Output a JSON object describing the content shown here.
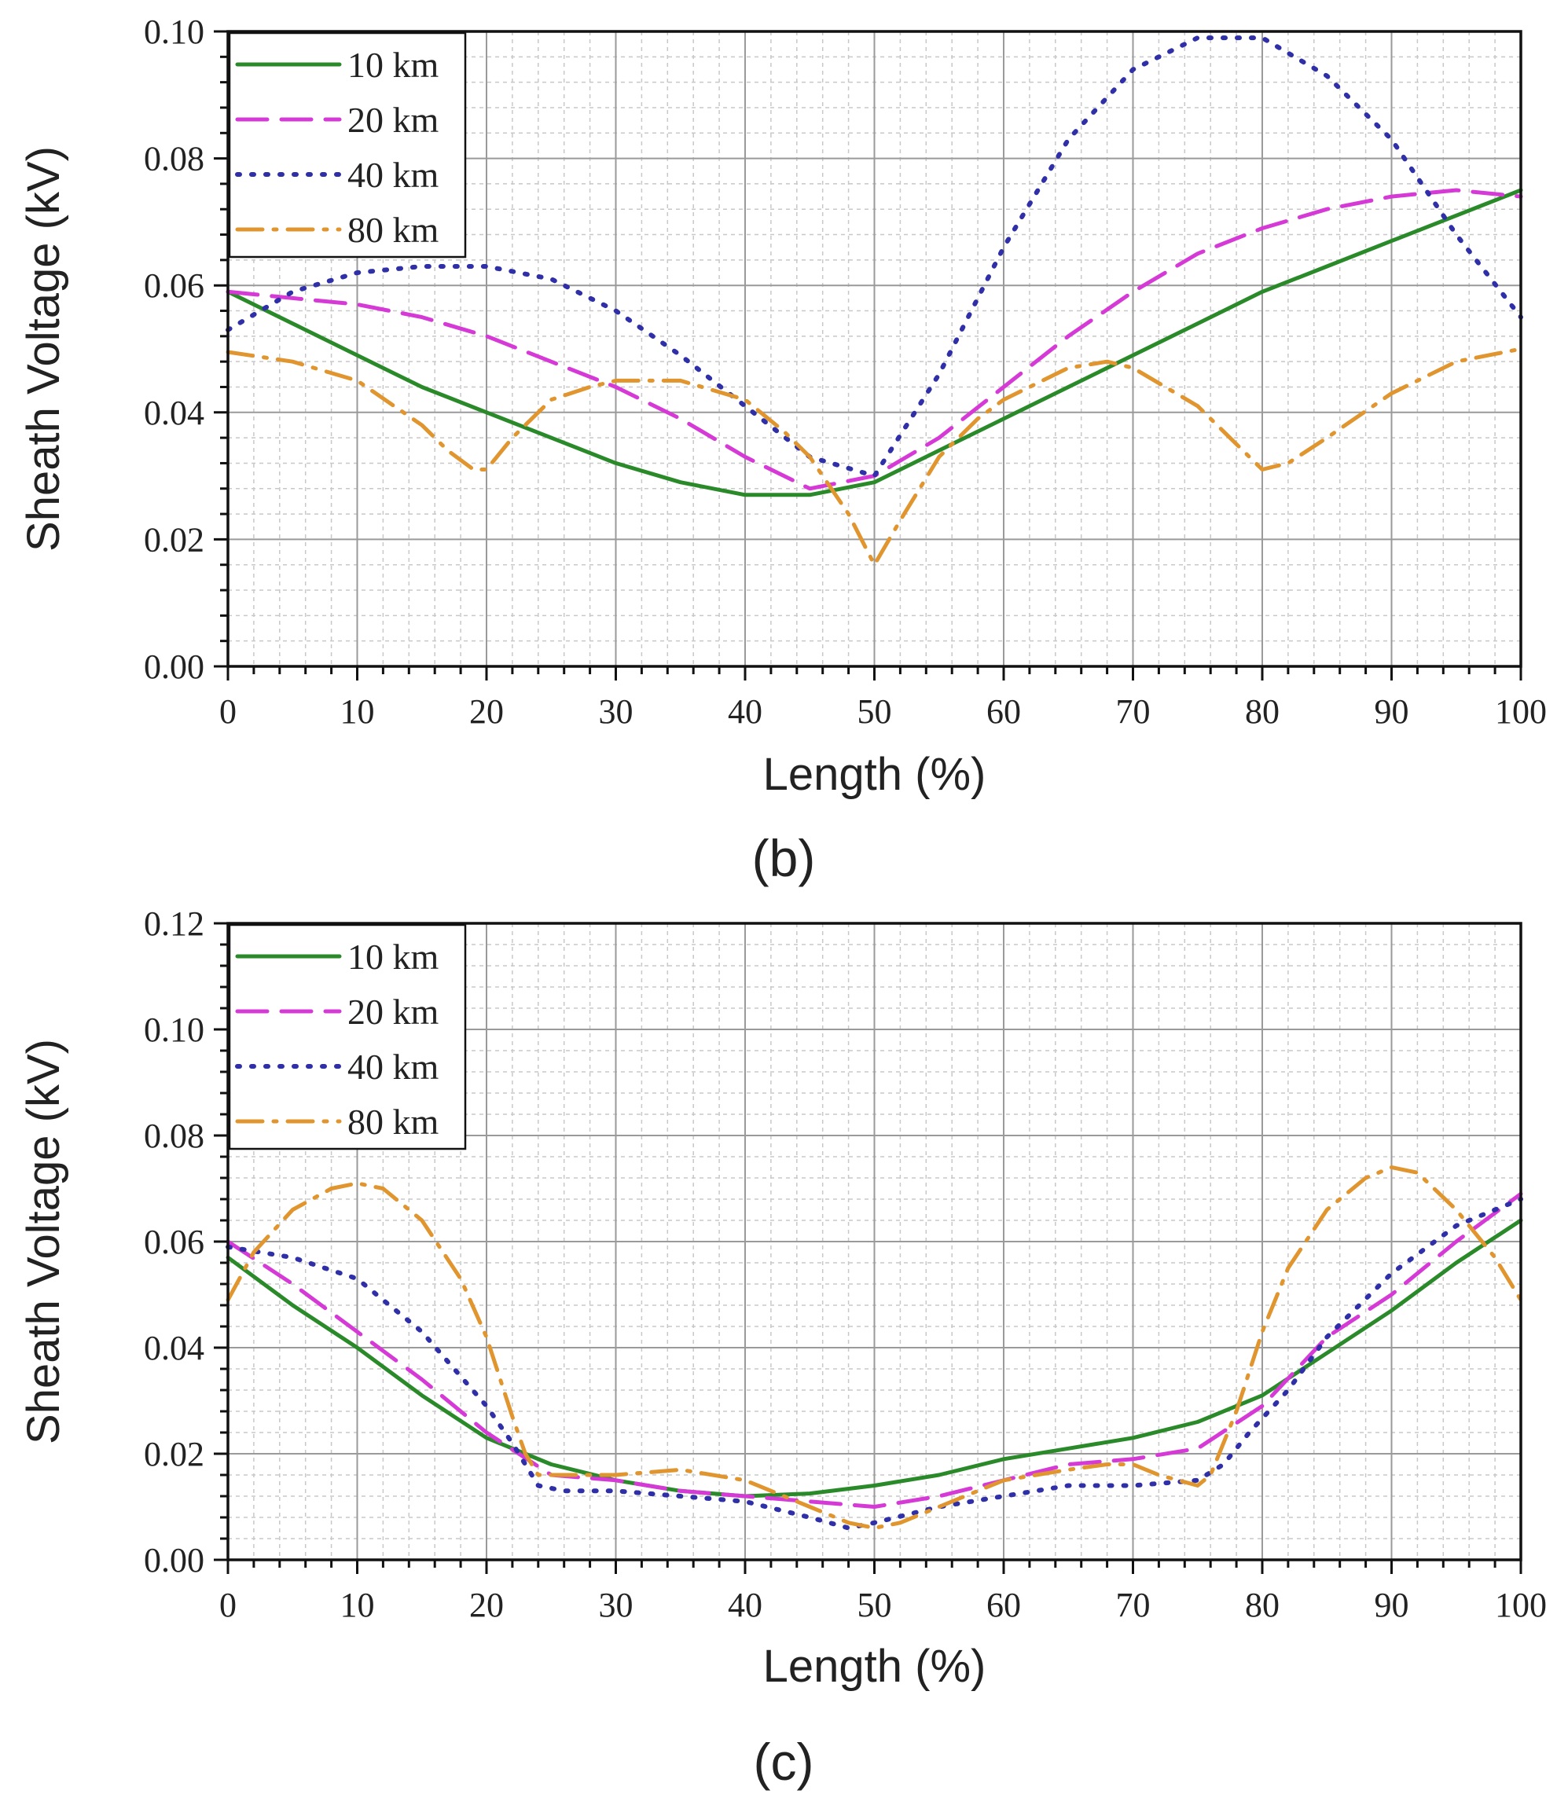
{
  "colors": {
    "10 km": "#2a8a2a",
    "20 km": "#d63ad6",
    "40 km": "#2f2fa8",
    "80 km": "#e0952e",
    "grid_major": "#9a9a9a",
    "grid_minor": "#c8c8c8"
  },
  "chart_data": [
    {
      "type": "line",
      "title": "",
      "caption": "(b)",
      "xlabel": "Length (%)",
      "ylabel": "Sheath Voltage (kV)",
      "xlim": [
        0,
        100
      ],
      "ylim": [
        0,
        0.1
      ],
      "xticks": [
        0,
        10,
        20,
        30,
        40,
        50,
        60,
        70,
        80,
        90,
        100
      ],
      "yticks": [
        0.0,
        0.02,
        0.04,
        0.06,
        0.08,
        0.1
      ],
      "xtick_labels": [
        "0",
        "10",
        "20",
        "30",
        "40",
        "50",
        "60",
        "70",
        "80",
        "90",
        "100"
      ],
      "ytick_labels": [
        "0.00",
        "0.02",
        "0.04",
        "0.06",
        "0.08",
        "0.10"
      ],
      "grid": true,
      "legend_position": "top-left",
      "series": [
        {
          "name": "10 km",
          "style": "solid",
          "x": [
            0,
            5,
            10,
            15,
            20,
            25,
            30,
            35,
            40,
            45,
            50,
            55,
            60,
            65,
            70,
            75,
            80,
            85,
            90,
            95,
            100
          ],
          "y": [
            0.059,
            0.054,
            0.049,
            0.044,
            0.04,
            0.036,
            0.032,
            0.029,
            0.027,
            0.027,
            0.029,
            0.034,
            0.039,
            0.044,
            0.049,
            0.054,
            0.059,
            0.063,
            0.067,
            0.071,
            0.075
          ]
        },
        {
          "name": "20 km",
          "style": "dashed",
          "x": [
            0,
            5,
            10,
            15,
            20,
            25,
            30,
            35,
            40,
            45,
            50,
            55,
            60,
            65,
            70,
            75,
            80,
            85,
            90,
            95,
            100
          ],
          "y": [
            0.059,
            0.058,
            0.057,
            0.055,
            0.052,
            0.048,
            0.044,
            0.039,
            0.033,
            0.028,
            0.03,
            0.036,
            0.044,
            0.052,
            0.059,
            0.065,
            0.069,
            0.072,
            0.074,
            0.075,
            0.074
          ]
        },
        {
          "name": "40 km",
          "style": "dotted",
          "x": [
            0,
            5,
            10,
            15,
            20,
            25,
            30,
            35,
            40,
            45,
            50,
            55,
            60,
            65,
            70,
            75,
            80,
            85,
            90,
            95,
            100
          ],
          "y": [
            0.053,
            0.059,
            0.062,
            0.063,
            0.063,
            0.061,
            0.056,
            0.049,
            0.041,
            0.033,
            0.03,
            0.046,
            0.066,
            0.083,
            0.094,
            0.099,
            0.099,
            0.093,
            0.083,
            0.068,
            0.055
          ]
        },
        {
          "name": "80 km",
          "style": "dashdot",
          "x": [
            0,
            5,
            10,
            15,
            17,
            19,
            20,
            22,
            25,
            28,
            30,
            35,
            40,
            43,
            45,
            48,
            50,
            52,
            55,
            58,
            60,
            65,
            68,
            70,
            75,
            78,
            80,
            82,
            85,
            90,
            95,
            100
          ],
          "y": [
            0.0495,
            0.048,
            0.045,
            0.038,
            0.034,
            0.031,
            0.031,
            0.036,
            0.042,
            0.044,
            0.045,
            0.045,
            0.042,
            0.037,
            0.033,
            0.024,
            0.016,
            0.023,
            0.033,
            0.039,
            0.042,
            0.047,
            0.048,
            0.047,
            0.041,
            0.035,
            0.031,
            0.032,
            0.036,
            0.043,
            0.048,
            0.05
          ]
        }
      ]
    },
    {
      "type": "line",
      "title": "",
      "caption": "(c)",
      "xlabel": "Length (%)",
      "ylabel": "Sheath Voltage (kV)",
      "xlim": [
        0,
        100
      ],
      "ylim": [
        0,
        0.12
      ],
      "xticks": [
        0,
        10,
        20,
        30,
        40,
        50,
        60,
        70,
        80,
        90,
        100
      ],
      "yticks": [
        0.0,
        0.02,
        0.04,
        0.06,
        0.08,
        0.1,
        0.12
      ],
      "xtick_labels": [
        "0",
        "10",
        "20",
        "30",
        "40",
        "50",
        "60",
        "70",
        "80",
        "90",
        "100"
      ],
      "ytick_labels": [
        "0.00",
        "0.02",
        "0.04",
        "0.06",
        "0.08",
        "0.10",
        "0.12"
      ],
      "grid": true,
      "legend_position": "top-left",
      "series": [
        {
          "name": "10 km",
          "style": "solid",
          "x": [
            0,
            5,
            10,
            15,
            20,
            25,
            30,
            35,
            40,
            45,
            50,
            55,
            60,
            65,
            70,
            75,
            80,
            85,
            90,
            95,
            100
          ],
          "y": [
            0.057,
            0.048,
            0.04,
            0.031,
            0.023,
            0.018,
            0.015,
            0.013,
            0.012,
            0.0125,
            0.014,
            0.016,
            0.019,
            0.021,
            0.023,
            0.026,
            0.031,
            0.039,
            0.047,
            0.056,
            0.064
          ]
        },
        {
          "name": "20 km",
          "style": "dashed",
          "x": [
            0,
            5,
            10,
            15,
            20,
            25,
            30,
            35,
            40,
            45,
            50,
            55,
            60,
            65,
            70,
            75,
            80,
            85,
            90,
            95,
            100
          ],
          "y": [
            0.06,
            0.052,
            0.043,
            0.034,
            0.024,
            0.016,
            0.015,
            0.013,
            0.012,
            0.011,
            0.01,
            0.012,
            0.015,
            0.018,
            0.019,
            0.021,
            0.029,
            0.042,
            0.05,
            0.06,
            0.069
          ]
        },
        {
          "name": "40 km",
          "style": "dotted",
          "x": [
            0,
            5,
            10,
            15,
            20,
            22,
            24,
            26,
            30,
            35,
            40,
            45,
            48,
            50,
            55,
            60,
            65,
            70,
            75,
            77,
            79,
            82,
            85,
            90,
            95,
            100
          ],
          "y": [
            0.059,
            0.057,
            0.053,
            0.043,
            0.029,
            0.022,
            0.014,
            0.013,
            0.013,
            0.012,
            0.011,
            0.008,
            0.006,
            0.007,
            0.01,
            0.012,
            0.014,
            0.014,
            0.015,
            0.018,
            0.024,
            0.032,
            0.042,
            0.054,
            0.063,
            0.068
          ]
        },
        {
          "name": "80 km",
          "style": "dashdot",
          "x": [
            0,
            2,
            5,
            8,
            10,
            12,
            15,
            18,
            20,
            22,
            23,
            24,
            25,
            30,
            35,
            40,
            45,
            48,
            50,
            52,
            55,
            60,
            65,
            68,
            70,
            72,
            75,
            76,
            78,
            80,
            82,
            85,
            88,
            90,
            92,
            95,
            98,
            100
          ],
          "y": [
            0.049,
            0.058,
            0.066,
            0.07,
            0.071,
            0.07,
            0.064,
            0.053,
            0.042,
            0.027,
            0.02,
            0.016,
            0.016,
            0.016,
            0.017,
            0.015,
            0.01,
            0.007,
            0.006,
            0.007,
            0.01,
            0.015,
            0.017,
            0.018,
            0.018,
            0.016,
            0.014,
            0.016,
            0.028,
            0.043,
            0.055,
            0.066,
            0.072,
            0.074,
            0.073,
            0.066,
            0.057,
            0.049
          ]
        }
      ]
    }
  ]
}
